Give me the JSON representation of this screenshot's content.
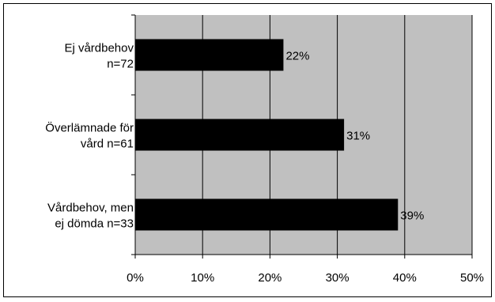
{
  "chart_data": {
    "type": "bar",
    "orientation": "horizontal",
    "categories": [
      [
        "Ej vårdbehov",
        "n=72"
      ],
      [
        "Överlämnade för",
        "vård n=61"
      ],
      [
        "Vårdbehov, men",
        "ej dömda n=33"
      ]
    ],
    "values": [
      22,
      31,
      39
    ],
    "value_labels": [
      "22%",
      "31%",
      "39%"
    ],
    "xlim": [
      0,
      50
    ],
    "xticks": [
      0,
      10,
      20,
      30,
      40,
      50
    ],
    "xtick_labels": [
      "0%",
      "10%",
      "20%",
      "30%",
      "40%",
      "50%"
    ],
    "grid": true,
    "legend": false,
    "colors": {
      "plot_background": "#c0c0c0",
      "bar_fill": "#000000",
      "gridline": "#000000",
      "axis": "#000000",
      "text": "#000000"
    }
  }
}
